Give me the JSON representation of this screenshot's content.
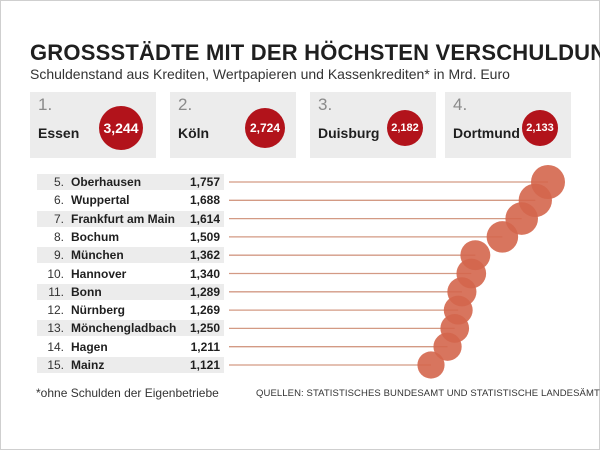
{
  "title": "GROSSSTÄDTE MIT DER HÖCHSTEN VERSCHULDUNG",
  "subtitle": "Schuldenstand aus Krediten, Wertpapieren und Kassenkrediten* in Mrd. Euro",
  "footnote": "*ohne Schulden der Eigenbetriebe",
  "source": "QUELLEN: STATISTISCHES BUNDESAMT UND STATISTISCHE LANDESÄMTER",
  "colors": {
    "top_bubble": "#b2131b",
    "list_bubble": "#d4664c",
    "line": "#d39a84",
    "card_bg": "#ececec"
  },
  "chart_data": {
    "type": "bar",
    "title": "GROSSSTÄDTE MIT DER HÖCHSTEN VERSCHULDUNG",
    "subtitle": "Schuldenstand aus Krediten, Wertpapieren und Kassenkrediten* in Mrd. Euro",
    "unit": "Mrd. Euro",
    "top4": [
      {
        "rank": "1.",
        "city": "Essen",
        "value": 3.244,
        "label": "3,244"
      },
      {
        "rank": "2.",
        "city": "Köln",
        "value": 2.724,
        "label": "2,724"
      },
      {
        "rank": "3.",
        "city": "Duisburg",
        "value": 2.182,
        "label": "2,182"
      },
      {
        "rank": "4.",
        "city": "Dortmund",
        "value": 2.133,
        "label": "2,133"
      }
    ],
    "list": [
      {
        "rank": "5.",
        "city": "Oberhausen",
        "value": 1.757,
        "label": "1,757"
      },
      {
        "rank": "6.",
        "city": "Wuppertal",
        "value": 1.688,
        "label": "1,688"
      },
      {
        "rank": "7.",
        "city": "Frankfurt am Main",
        "value": 1.614,
        "label": "1,614"
      },
      {
        "rank": "8.",
        "city": "Bochum",
        "value": 1.509,
        "label": "1,509"
      },
      {
        "rank": "9.",
        "city": "München",
        "value": 1.362,
        "label": "1,362"
      },
      {
        "rank": "10.",
        "city": "Hannover",
        "value": 1.34,
        "label": "1,340"
      },
      {
        "rank": "11.",
        "city": "Bonn",
        "value": 1.289,
        "label": "1,289"
      },
      {
        "rank": "12.",
        "city": "Nürnberg",
        "value": 1.269,
        "label": "1,269"
      },
      {
        "rank": "13.",
        "city": "Mönchengladbach",
        "value": 1.25,
        "label": "1,250"
      },
      {
        "rank": "14.",
        "city": "Hagen",
        "value": 1.211,
        "label": "1,211"
      },
      {
        "rank": "15.",
        "city": "Mainz",
        "value": 1.121,
        "label": "1,121"
      }
    ]
  }
}
